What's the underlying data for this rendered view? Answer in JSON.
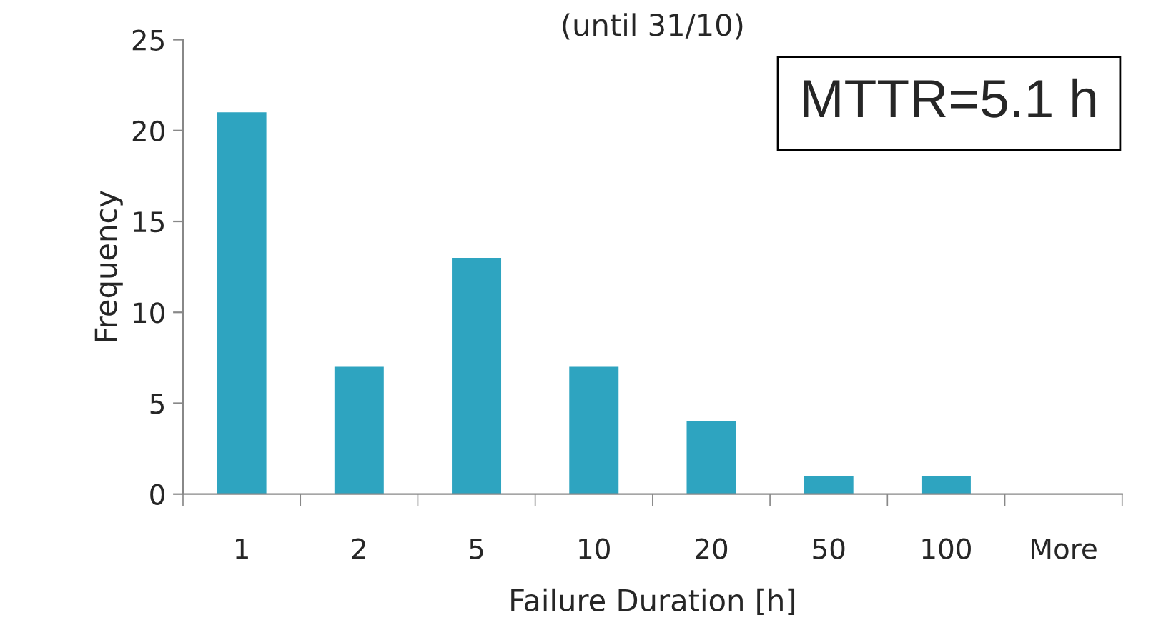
{
  "chart_data": {
    "type": "bar",
    "title": "(until 31/10)",
    "xlabel": "Failure Duration [h]",
    "ylabel": "Frequency",
    "categories": [
      "1",
      "2",
      "5",
      "10",
      "20",
      "50",
      "100",
      "More"
    ],
    "values": [
      21,
      7,
      13,
      7,
      4,
      1,
      1,
      0
    ],
    "color": "#2ea4c0",
    "ylim": [
      0,
      25
    ],
    "yticks": [
      0,
      5,
      10,
      15,
      20,
      25
    ],
    "grid": false,
    "legend": false,
    "annotations": [
      "MTTR=5.1 h"
    ]
  }
}
